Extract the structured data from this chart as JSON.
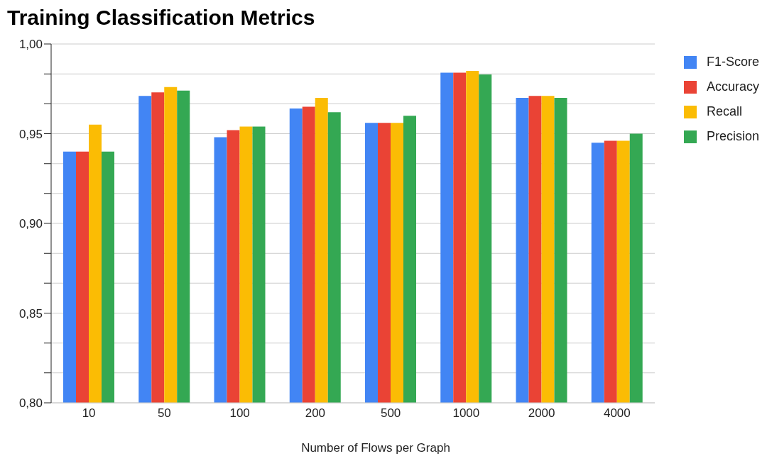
{
  "chart_data": {
    "type": "bar",
    "title": "Training Classification Metrics",
    "xlabel": "Number of Flows per Graph",
    "categories": [
      "10",
      "50",
      "100",
      "200",
      "500",
      "1000",
      "2000",
      "4000"
    ],
    "series": [
      {
        "name": "F1-Score",
        "color": "#4285f4",
        "values": [
          0.94,
          0.971,
          0.948,
          0.964,
          0.956,
          0.984,
          0.97,
          0.945
        ]
      },
      {
        "name": "Accuracy",
        "color": "#ea4335",
        "values": [
          0.94,
          0.973,
          0.952,
          0.965,
          0.956,
          0.984,
          0.971,
          0.946
        ]
      },
      {
        "name": "Recall",
        "color": "#fbbc04",
        "values": [
          0.955,
          0.976,
          0.954,
          0.97,
          0.956,
          0.985,
          0.971,
          0.946
        ]
      },
      {
        "name": "Precision",
        "color": "#34a853",
        "values": [
          0.94,
          0.974,
          0.954,
          0.962,
          0.96,
          0.983,
          0.97,
          0.95
        ]
      }
    ],
    "ylim": [
      0.8,
      1.0
    ],
    "yticks": [
      {
        "value": 0.8,
        "label": "0,80"
      },
      {
        "value": 0.8167,
        "label": null
      },
      {
        "value": 0.8333,
        "label": null
      },
      {
        "value": 0.85,
        "label": "0,85"
      },
      {
        "value": 0.8667,
        "label": null
      },
      {
        "value": 0.8833,
        "label": null
      },
      {
        "value": 0.9,
        "label": "0,90"
      },
      {
        "value": 0.9167,
        "label": null
      },
      {
        "value": 0.9333,
        "label": null
      },
      {
        "value": 0.95,
        "label": "0,95"
      },
      {
        "value": 0.9667,
        "label": null
      },
      {
        "value": 0.9833,
        "label": null
      },
      {
        "value": 1.0,
        "label": "1,00"
      }
    ],
    "grid": "y",
    "legend": "top right"
  }
}
